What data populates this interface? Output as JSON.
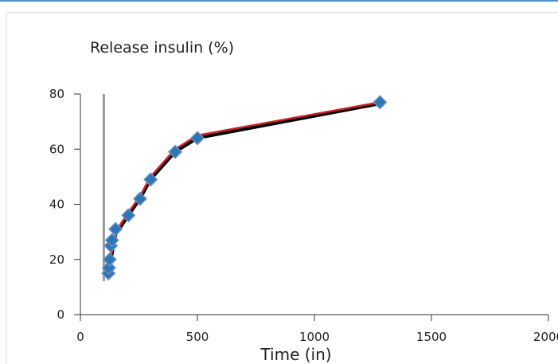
{
  "chart_data": {
    "type": "line",
    "title": "Release insulin (%)",
    "xlabel": "Time (in)",
    "ylabel": "",
    "xlim": [
      0,
      2000
    ],
    "ylim": [
      0,
      80
    ],
    "xticks": [
      0,
      500,
      1000,
      1500,
      2000
    ],
    "yticks": [
      0,
      20,
      40,
      60,
      80
    ],
    "xtick_labels": [
      "0",
      "500",
      "1000",
      "1500",
      "2000"
    ],
    "ytick_labels": [
      "0",
      "20",
      "40",
      "60",
      "80"
    ],
    "reference_line_x": 100,
    "grid": false,
    "series": [
      {
        "color": "#2e75b6",
        "marker": "diamond",
        "x": [
          120,
          122,
          125,
          130,
          135,
          150,
          205,
          255,
          300,
          405,
          500,
          1280
        ],
        "y": [
          15,
          17,
          20,
          25,
          27,
          31,
          36,
          42,
          49,
          59,
          64,
          77
        ]
      }
    ],
    "fit_lines": [
      {
        "color": "#000000",
        "x": [
          120,
          150,
          205,
          255,
          300,
          405,
          500,
          1280
        ],
        "y": [
          15,
          29,
          36,
          42,
          49,
          59,
          64,
          76.5
        ]
      },
      {
        "color": "#d0202a",
        "x": [
          120,
          150,
          205,
          255,
          300,
          405,
          500,
          1280
        ],
        "y": [
          16,
          30,
          37,
          43,
          50,
          60,
          65,
          77
        ]
      }
    ]
  }
}
